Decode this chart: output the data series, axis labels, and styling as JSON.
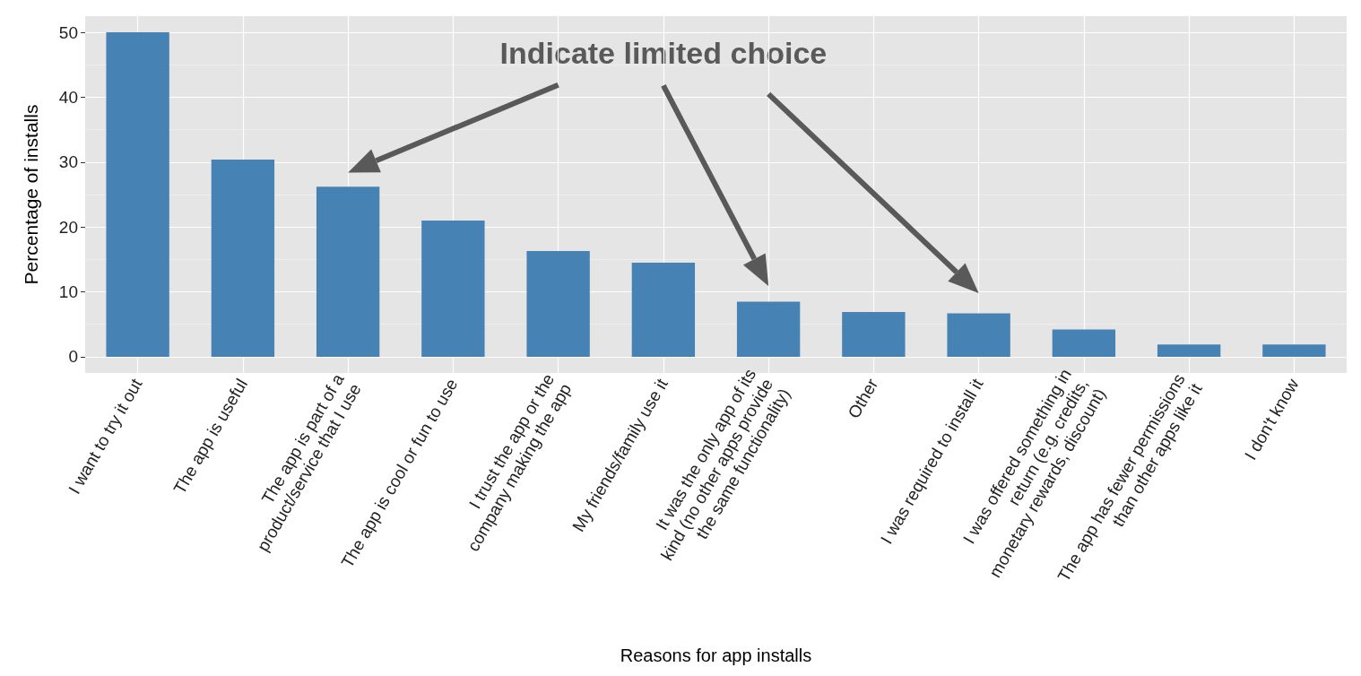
{
  "chart_data": {
    "type": "bar",
    "xlabel": "Reasons for app installs",
    "ylabel": "Percentage of installs",
    "categories": [
      "I want to try it out",
      "The app is useful",
      "The app is part of a\nproduct/service that I use",
      "The app is cool or fun to use",
      "I trust the app or the\ncompany making the app",
      "My friends/family use it",
      "It was the only app of its\nkind (no other apps provide\nthe same functionality)",
      "Other",
      "I was required to install it",
      "I was offered something in\nreturn (e.g. credits,\nmonetary rewards, discount)",
      "The app has fewer permissions\nthan other apps like it",
      "I don't know"
    ],
    "values": [
      50,
      30.4,
      26.2,
      21,
      16.3,
      14.5,
      8.5,
      6.9,
      6.7,
      4.2,
      1.9,
      1.9
    ],
    "color": "#4682b4",
    "ylim": [
      -2.5,
      52.5
    ],
    "yticks": [
      0,
      10,
      20,
      30,
      40,
      50
    ],
    "grid": true,
    "annotations": [
      "Indicate limited choice"
    ]
  }
}
